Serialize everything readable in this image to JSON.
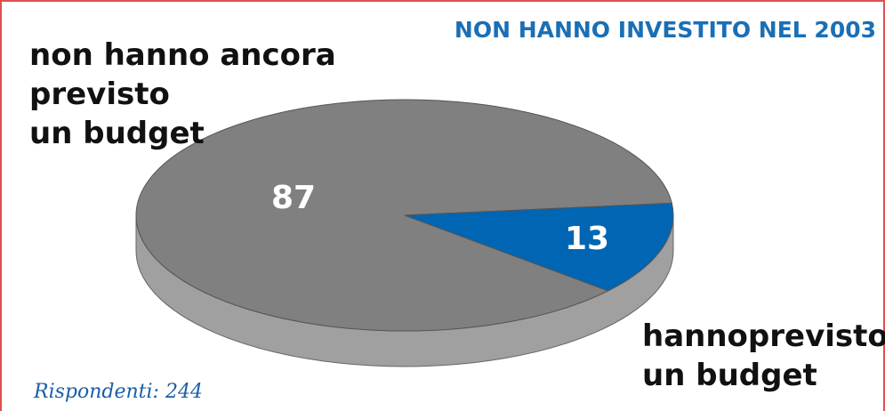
{
  "chart_data": {
    "type": "pie",
    "title": "NON HANNO INVESTITO NEL 2003",
    "categories": [
      "non hanno ancora\nprevisto\nun budget",
      "hannoprevisto\nun budget"
    ],
    "values": [
      87,
      13
    ],
    "colors": [
      "#808080",
      "#0066b3"
    ],
    "note": "Rispondenti: 244"
  }
}
